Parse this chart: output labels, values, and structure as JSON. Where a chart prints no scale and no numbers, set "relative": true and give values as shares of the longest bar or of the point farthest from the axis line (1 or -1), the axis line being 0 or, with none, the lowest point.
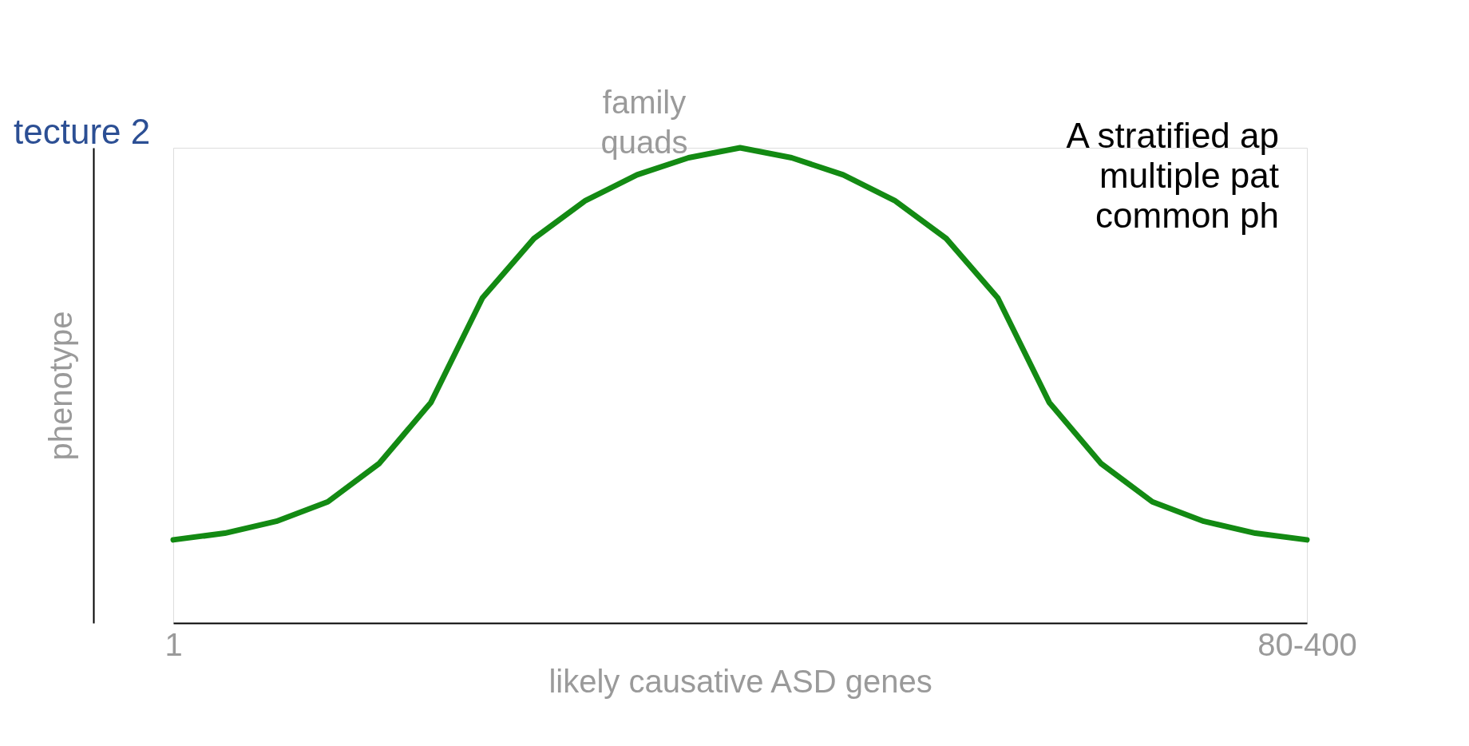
{
  "chart_data": {
    "type": "line",
    "relative": true,
    "xlabel": "likely causative ASD genes",
    "ylabel": "phenotype",
    "categories": [
      "1",
      null,
      null,
      null,
      null,
      null,
      null,
      null,
      null,
      null,
      null,
      null,
      null,
      null,
      null,
      null,
      null,
      null,
      null,
      null,
      null,
      null,
      "80-400"
    ],
    "series": [
      {
        "color": "#138a13",
        "values": [
          0.175,
          0.189,
          0.214,
          0.255,
          0.336,
          0.464,
          0.684,
          0.809,
          0.889,
          0.943,
          0.979,
          1,
          0.979,
          0.943,
          0.889,
          0.809,
          0.684,
          0.464,
          0.336,
          0.255,
          0.214,
          0.189,
          0.175
        ]
      }
    ],
    "annotations": [
      "family\nquads",
      "tecture 2",
      "A stratified ap\nmultiple pat\ncommon ph"
    ],
    "grid": false,
    "line_style": "solid"
  }
}
